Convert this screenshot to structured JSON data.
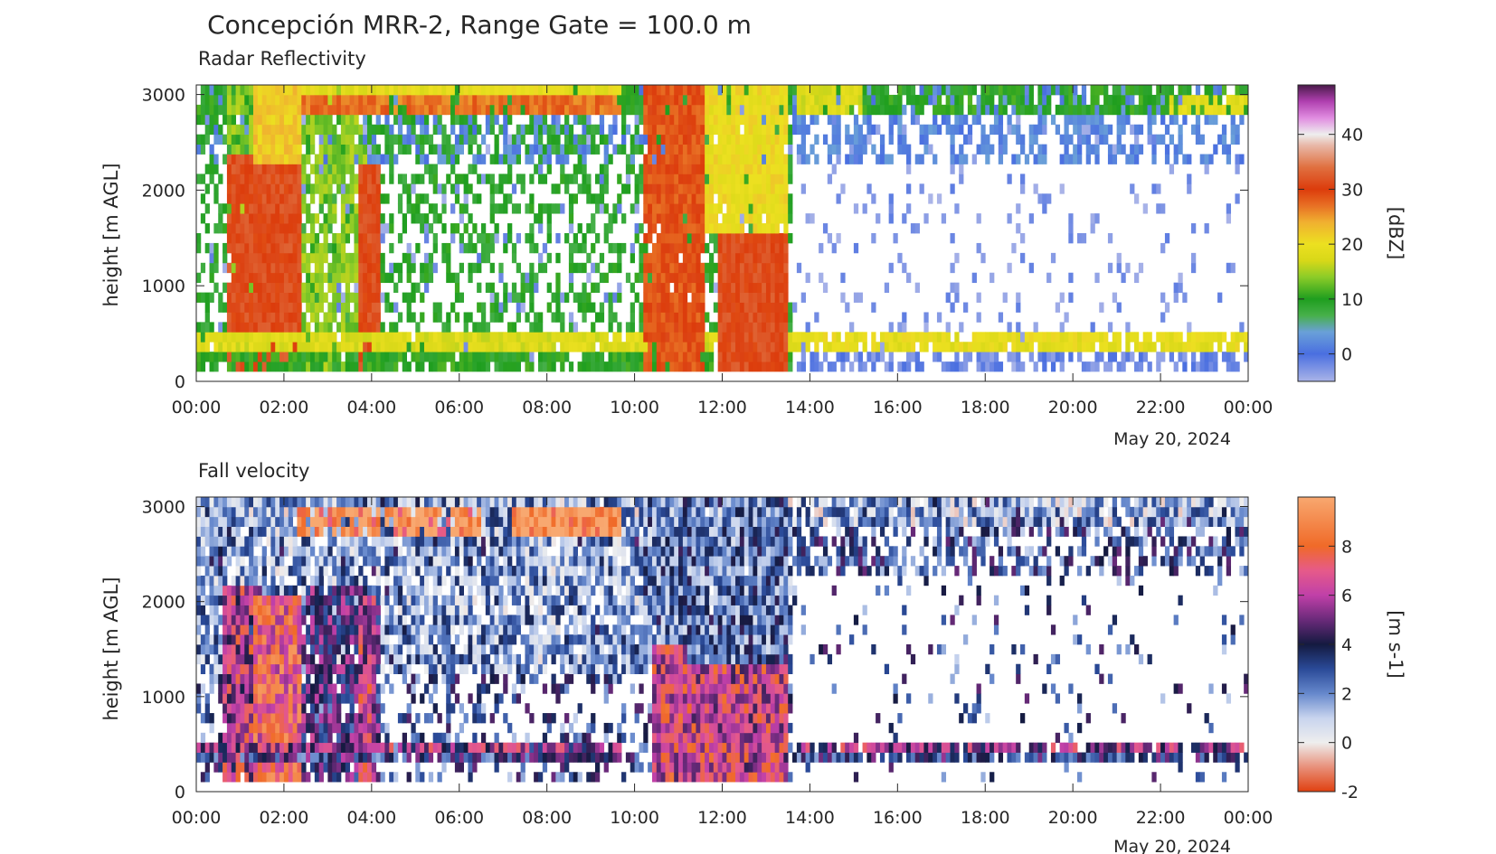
{
  "figure": {
    "title": "Concepción MRR-2, Range Gate = 100.0 m"
  },
  "chart_data": [
    {
      "type": "heatmap",
      "title": "Radar Reflectivity",
      "xlabel": "",
      "ylabel": "height [m AGL]",
      "date_label": "May 20, 2024",
      "x_ticks": [
        "00:00",
        "02:00",
        "04:00",
        "06:00",
        "08:00",
        "10:00",
        "12:00",
        "14:00",
        "16:00",
        "18:00",
        "20:00",
        "22:00",
        "00:00"
      ],
      "xlim_hours": [
        0,
        24
      ],
      "y_ticks": [
        0,
        1000,
        2000,
        3000
      ],
      "ylim": [
        0,
        3100
      ],
      "colorbar": {
        "label": "[dBZ]",
        "range": [
          -5,
          49
        ],
        "ticks": [
          0,
          10,
          20,
          30,
          40
        ],
        "colormap": [
          {
            "v": -5,
            "c": "#aab4e8"
          },
          {
            "v": 0,
            "c": "#4a6fe0"
          },
          {
            "v": 4,
            "c": "#6aa0d8"
          },
          {
            "v": 7,
            "c": "#47b04a"
          },
          {
            "v": 10,
            "c": "#1f9e1f"
          },
          {
            "v": 14,
            "c": "#8ccc28"
          },
          {
            "v": 17,
            "c": "#d8d818"
          },
          {
            "v": 20,
            "c": "#ece020"
          },
          {
            "v": 24,
            "c": "#f0b030"
          },
          {
            "v": 27,
            "c": "#e87024"
          },
          {
            "v": 30,
            "c": "#dc3c0c"
          },
          {
            "v": 34,
            "c": "#e07040"
          },
          {
            "v": 38,
            "c": "#e8b8a8"
          },
          {
            "v": 40,
            "c": "#eeeeee"
          },
          {
            "v": 43,
            "c": "#e08ce0"
          },
          {
            "v": 46,
            "c": "#b040b0"
          },
          {
            "v": 49,
            "c": "#4a1a4a"
          }
        ]
      },
      "features": [
        {
          "t0": 0.0,
          "t1": 24.0,
          "h0": 100,
          "h1": 3100,
          "v": -3,
          "fill": 0.09
        },
        {
          "t0": 0.0,
          "t1": 24.0,
          "h0": 2300,
          "h1": 3100,
          "v": 2,
          "fill": 0.45
        },
        {
          "t0": 0.0,
          "t1": 24.0,
          "h0": 2750,
          "h1": 3100,
          "v": 10,
          "fill": 0.7
        },
        {
          "t0": 0.0,
          "t1": 13.6,
          "h0": 100,
          "h1": 3100,
          "v": 9,
          "fill": 0.38
        },
        {
          "t0": 0.7,
          "t1": 3.9,
          "h0": 100,
          "h1": 3100,
          "v": 14,
          "fill": 0.7
        },
        {
          "t0": 0.7,
          "t1": 1.3,
          "h0": 100,
          "h1": 2400,
          "v": 31,
          "fill": 0.95
        },
        {
          "t0": 1.3,
          "t1": 2.4,
          "h0": 100,
          "h1": 2300,
          "v": 31,
          "fill": 1.0
        },
        {
          "t0": 1.3,
          "t1": 2.4,
          "h0": 2300,
          "h1": 3100,
          "v": 22,
          "fill": 1.0
        },
        {
          "t0": 3.7,
          "t1": 4.2,
          "h0": 100,
          "h1": 2300,
          "v": 31,
          "fill": 1.0
        },
        {
          "t0": 2.4,
          "t1": 9.7,
          "h0": 2750,
          "h1": 2950,
          "v": 27,
          "fill": 0.9
        },
        {
          "t0": 2.4,
          "t1": 9.7,
          "h0": 2950,
          "h1": 3100,
          "v": 19,
          "fill": 0.9
        },
        {
          "t0": 0.0,
          "t1": 13.6,
          "h0": 300,
          "h1": 500,
          "v": 18,
          "fill": 0.9
        },
        {
          "t0": 0.0,
          "t1": 13.6,
          "h0": 100,
          "h1": 300,
          "v": 10,
          "fill": 0.75
        },
        {
          "t0": 10.2,
          "t1": 11.6,
          "h0": 100,
          "h1": 3100,
          "v": 29,
          "fill": 0.95
        },
        {
          "t0": 11.6,
          "t1": 13.5,
          "h0": 1500,
          "h1": 3100,
          "v": 20,
          "fill": 0.9
        },
        {
          "t0": 11.9,
          "t1": 13.5,
          "h0": 100,
          "h1": 1500,
          "v": 31,
          "fill": 1.0
        },
        {
          "t0": 13.6,
          "t1": 24.0,
          "h0": 300,
          "h1": 500,
          "v": 19,
          "fill": 0.85
        },
        {
          "t0": 13.6,
          "t1": 24.0,
          "h0": 100,
          "h1": 300,
          "v": -2,
          "fill": 0.55
        },
        {
          "t0": 13.7,
          "t1": 15.2,
          "h0": 2800,
          "h1": 3100,
          "v": 18,
          "fill": 0.85
        },
        {
          "t0": 22.2,
          "t1": 24.0,
          "h0": 2750,
          "h1": 3000,
          "v": 19,
          "fill": 0.85
        }
      ]
    },
    {
      "type": "heatmap",
      "title": "Fall velocity",
      "xlabel": "",
      "ylabel": "height [m AGL]",
      "date_label": "May 20, 2024",
      "x_ticks": [
        "00:00",
        "02:00",
        "04:00",
        "06:00",
        "08:00",
        "10:00",
        "12:00",
        "14:00",
        "16:00",
        "18:00",
        "20:00",
        "22:00",
        "00:00"
      ],
      "xlim_hours": [
        0,
        24
      ],
      "y_ticks": [
        0,
        1000,
        2000,
        3000
      ],
      "ylim": [
        0,
        3100
      ],
      "colorbar": {
        "label": "[m s-1]",
        "range": [
          -2,
          10
        ],
        "ticks": [
          -2,
          0,
          2,
          4,
          6,
          8
        ],
        "colormap": [
          {
            "v": -2,
            "c": "#e04010"
          },
          {
            "v": -1,
            "c": "#e8907a"
          },
          {
            "v": 0,
            "c": "#eeeeee"
          },
          {
            "v": 1,
            "c": "#c8d4ee"
          },
          {
            "v": 2,
            "c": "#6688cc"
          },
          {
            "v": 3,
            "c": "#2a4a98"
          },
          {
            "v": 4,
            "c": "#141a40"
          },
          {
            "v": 5,
            "c": "#6a2a7a"
          },
          {
            "v": 6,
            "c": "#c040a8"
          },
          {
            "v": 7,
            "c": "#e65a8a"
          },
          {
            "v": 8,
            "c": "#f06a28"
          },
          {
            "v": 10,
            "c": "#f8a870"
          }
        ]
      },
      "features": [
        {
          "t0": 0.0,
          "t1": 24.0,
          "h0": 100,
          "h1": 3100,
          "v": 3,
          "fill": 0.07
        },
        {
          "t0": 0.0,
          "t1": 24.0,
          "h0": 2300,
          "h1": 3100,
          "v": 3,
          "fill": 0.5
        },
        {
          "t0": 0.0,
          "t1": 24.0,
          "h0": 2800,
          "h1": 3100,
          "v": 1.5,
          "fill": 0.8
        },
        {
          "t0": 0.0,
          "t1": 13.6,
          "h0": 1200,
          "h1": 3100,
          "v": 1.8,
          "fill": 0.75
        },
        {
          "t0": 0.0,
          "t1": 13.6,
          "h0": 100,
          "h1": 1200,
          "v": 3,
          "fill": 0.3
        },
        {
          "t0": 0.6,
          "t1": 4.2,
          "h0": 100,
          "h1": 2200,
          "v": 4.5,
          "fill": 0.8
        },
        {
          "t0": 0.6,
          "t1": 1.3,
          "h0": 100,
          "h1": 2200,
          "v": 6,
          "fill": 0.95
        },
        {
          "t0": 1.3,
          "t1": 2.4,
          "h0": 100,
          "h1": 2100,
          "v": 7.5,
          "fill": 1.0
        },
        {
          "t0": 3.7,
          "t1": 4.1,
          "h0": 100,
          "h1": 2100,
          "v": 6,
          "fill": 1.0
        },
        {
          "t0": 2.3,
          "t1": 6.5,
          "h0": 2700,
          "h1": 2950,
          "v": 9,
          "fill": 0.8
        },
        {
          "t0": 7.2,
          "t1": 9.7,
          "h0": 2700,
          "h1": 2980,
          "v": 9.5,
          "fill": 1.0
        },
        {
          "t0": 0.0,
          "t1": 9.7,
          "h0": 400,
          "h1": 500,
          "v": 5.5,
          "fill": 0.9
        },
        {
          "t0": 0.0,
          "t1": 9.7,
          "h0": 300,
          "h1": 400,
          "v": 3.5,
          "fill": 0.9
        },
        {
          "t0": 10.2,
          "t1": 13.5,
          "h0": 1300,
          "h1": 3100,
          "v": 2.5,
          "fill": 0.9
        },
        {
          "t0": 10.4,
          "t1": 11.2,
          "h0": 100,
          "h1": 1600,
          "v": 6.5,
          "fill": 1.0
        },
        {
          "t0": 11.2,
          "t1": 13.5,
          "h0": 100,
          "h1": 1300,
          "v": 6.3,
          "fill": 1.0
        },
        {
          "t0": 13.6,
          "t1": 24.0,
          "h0": 400,
          "h1": 500,
          "v": 5.5,
          "fill": 0.85
        },
        {
          "t0": 13.6,
          "t1": 24.0,
          "h0": 300,
          "h1": 400,
          "v": 3.5,
          "fill": 0.85
        }
      ]
    }
  ]
}
